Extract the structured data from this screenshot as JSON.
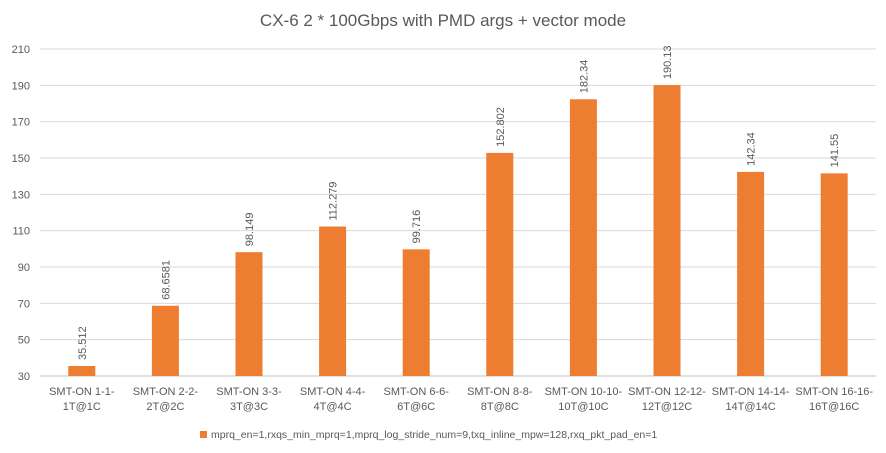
{
  "chart_data": {
    "type": "bar",
    "title": "CX-6 2 * 100Gbps with PMD args + vector mode",
    "xlabel": "",
    "ylabel": "",
    "ylim": [
      30,
      210
    ],
    "yticks": [
      30,
      50,
      70,
      90,
      110,
      130,
      150,
      170,
      190,
      210
    ],
    "grid": true,
    "legend_position": "bottom",
    "categories": [
      [
        "SMT-ON 1-1-",
        "1T@1C"
      ],
      [
        "SMT-ON 2-2-",
        "2T@2C"
      ],
      [
        "SMT-ON 3-3-",
        "3T@3C"
      ],
      [
        "SMT-ON 4-4-",
        "4T@4C"
      ],
      [
        "SMT-ON 6-6-",
        "6T@6C"
      ],
      [
        "SMT-ON 8-8-",
        "8T@8C"
      ],
      [
        "SMT-ON 10-10-",
        "10T@10C"
      ],
      [
        "SMT-ON 12-12-",
        "12T@12C"
      ],
      [
        "SMT-ON 14-14-",
        "14T@14C"
      ],
      [
        "SMT-ON 16-16-",
        "16T@16C"
      ]
    ],
    "series": [
      {
        "name": "mprq_en=1,rxqs_min_mprq=1,mprq_log_stride_num=9,txq_inline_mpw=128,rxq_pkt_pad_en=1",
        "color": "#ED7D31",
        "values": [
          35.512,
          68.6581,
          98.149,
          112.279,
          99.716,
          152.802,
          182.34,
          190.13,
          142.34,
          141.55
        ],
        "labels": [
          "35.512",
          "68.6581",
          "98.149",
          "112.279",
          "99.716",
          "152.802",
          "182.34",
          "190.13",
          "142.34",
          "141.55"
        ]
      }
    ]
  }
}
